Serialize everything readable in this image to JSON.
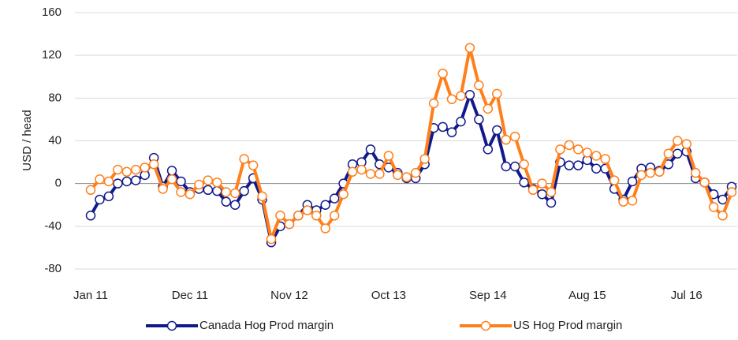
{
  "chart_data": {
    "type": "line",
    "y_label": "USD / head",
    "categories": [
      "Jan 11",
      null,
      null,
      null,
      null,
      null,
      null,
      null,
      null,
      null,
      null,
      "Dec 11",
      null,
      null,
      null,
      null,
      null,
      null,
      null,
      null,
      null,
      null,
      "Nov 12",
      null,
      null,
      null,
      null,
      null,
      null,
      null,
      null,
      null,
      null,
      "Oct 13",
      null,
      null,
      null,
      null,
      null,
      null,
      null,
      null,
      null,
      null,
      "Sep 14",
      null,
      null,
      null,
      null,
      null,
      null,
      null,
      null,
      null,
      null,
      "Aug 15",
      null,
      null,
      null,
      null,
      null,
      null,
      null,
      null,
      null,
      null,
      "Jul 16",
      null,
      null,
      null,
      null,
      null
    ],
    "series": [
      {
        "name": "Canada Hog Prod margin",
        "color": "#111a8a",
        "values": [
          -30,
          -15,
          -12,
          0,
          2,
          3,
          8,
          24,
          -3,
          12,
          2,
          -8,
          -5,
          -6,
          -7,
          -17,
          -20,
          -7,
          5,
          -15,
          -55,
          -40,
          -38,
          -30,
          -20,
          -25,
          -20,
          -14,
          0,
          18,
          20,
          32,
          18,
          15,
          10,
          5,
          5,
          18,
          52,
          53,
          48,
          58,
          83,
          60,
          32,
          50,
          16,
          16,
          1,
          -5,
          -10,
          -18,
          20,
          17,
          17,
          22,
          14,
          14,
          -5,
          -15,
          2,
          14,
          15,
          12,
          18,
          28,
          30,
          5,
          1,
          -10,
          -15,
          -3
        ]
      },
      {
        "name": "US Hog Prod margin",
        "color": "#ff7f1a",
        "values": [
          -6,
          4,
          2,
          13,
          11,
          13,
          15,
          18,
          -5,
          4,
          -8,
          -10,
          -1,
          3,
          1,
          -8,
          -9,
          23,
          17,
          -12,
          -52,
          -30,
          -38,
          -30,
          -25,
          -30,
          -42,
          -30,
          -10,
          11,
          13,
          9,
          9,
          26,
          8,
          6,
          10,
          23,
          75,
          103,
          79,
          82,
          127,
          92,
          70,
          84,
          41,
          44,
          18,
          -6,
          0,
          -8,
          32,
          36,
          32,
          29,
          26,
          23,
          3,
          -17,
          -16,
          8,
          10,
          11,
          28,
          40,
          37,
          10,
          1,
          -22,
          -30,
          -8
        ]
      }
    ],
    "ylim": [
      -80,
      160
    ],
    "yticks": [
      -80,
      -40,
      0,
      40,
      80,
      120,
      160
    ],
    "grid": true,
    "legend": "bottom"
  }
}
